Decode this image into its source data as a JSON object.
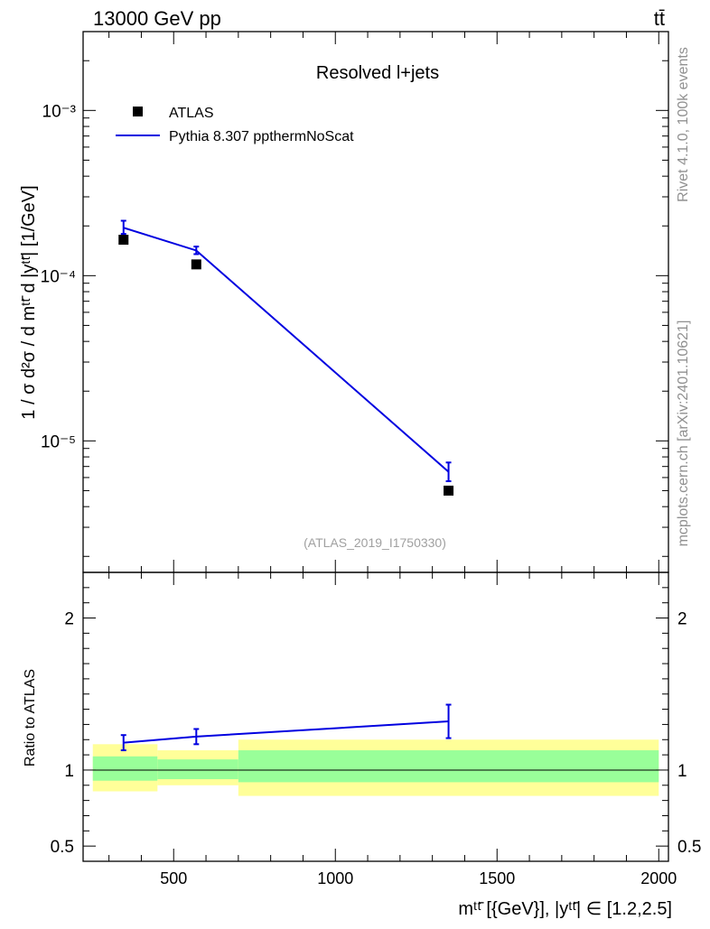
{
  "header": {
    "energy": "13000 GeV pp",
    "process": "tt̄"
  },
  "side": {
    "rivet": "Rivet 4.1.0,  100k events",
    "source": "mcplots.cern.ch [arXiv:2401.10621]"
  },
  "chart_data": [
    {
      "type": "line",
      "panel": "main",
      "title": "Resolved l+jets",
      "analysis": "(ATLAS_2019_I1750330)",
      "ylabel": "1 / σ d²σ / d mᵗᵗ̄ d |yᵗᵗ̄| [1/GeV]",
      "yscale": "log",
      "ylim": [
        1.6e-06,
        0.003
      ],
      "xlim": [
        220,
        2030
      ],
      "ytick_labels": [
        "10⁻³",
        "10⁻⁴",
        "10⁻⁵"
      ],
      "legend_position": "top-left",
      "series": [
        {
          "name": "ATLAS",
          "style": "markers",
          "color": "#000000",
          "x": [
            345,
            570,
            1350
          ],
          "y": [
            0.000165,
            0.000117,
            5e-06
          ]
        },
        {
          "name": "Pythia 8.307 ppthermNoScat",
          "style": "line",
          "color": "#0000e0",
          "x": [
            345,
            570,
            1350
          ],
          "y": [
            0.000195,
            0.000142,
            6.5e-06
          ],
          "err_up": [
            2e-05,
            8e-06,
            9e-07
          ],
          "err_down": [
            1.6e-05,
            7e-06,
            8e-07
          ]
        }
      ]
    },
    {
      "type": "line",
      "panel": "ratio",
      "ylabel": "Ratio to ATLAS",
      "xlabel": "mᵗᵗ̄ [{GeV}], |yᵗᵗ̄| ∈ [1.2,2.5]",
      "ylim": [
        0.4,
        2.3
      ],
      "xlim": [
        220,
        2030
      ],
      "xticks": [
        500,
        1000,
        1500,
        2000
      ],
      "xtick_labels": [
        "500",
        "1000",
        "1500",
        "2000"
      ],
      "yticks": [
        0.5,
        1,
        2
      ],
      "ytick_labels": [
        "0.5",
        "1",
        "2"
      ],
      "bands": {
        "edges": [
          250,
          450,
          700,
          2000
        ],
        "yellow_lo": [
          0.86,
          0.9,
          0.83
        ],
        "yellow_hi": [
          1.17,
          1.13,
          1.2
        ],
        "green_lo": [
          0.93,
          0.94,
          0.92
        ],
        "green_hi": [
          1.09,
          1.07,
          1.13
        ],
        "yellow_color": "#ffff99",
        "green_color": "#99ff99"
      },
      "series": [
        {
          "name": "Pythia 8.307 ppthermNoScat",
          "color": "#0000e0",
          "x": [
            345,
            570,
            1350
          ],
          "y": [
            1.18,
            1.22,
            1.32
          ],
          "err": [
            0.05,
            0.05,
            0.11
          ]
        }
      ]
    }
  ]
}
